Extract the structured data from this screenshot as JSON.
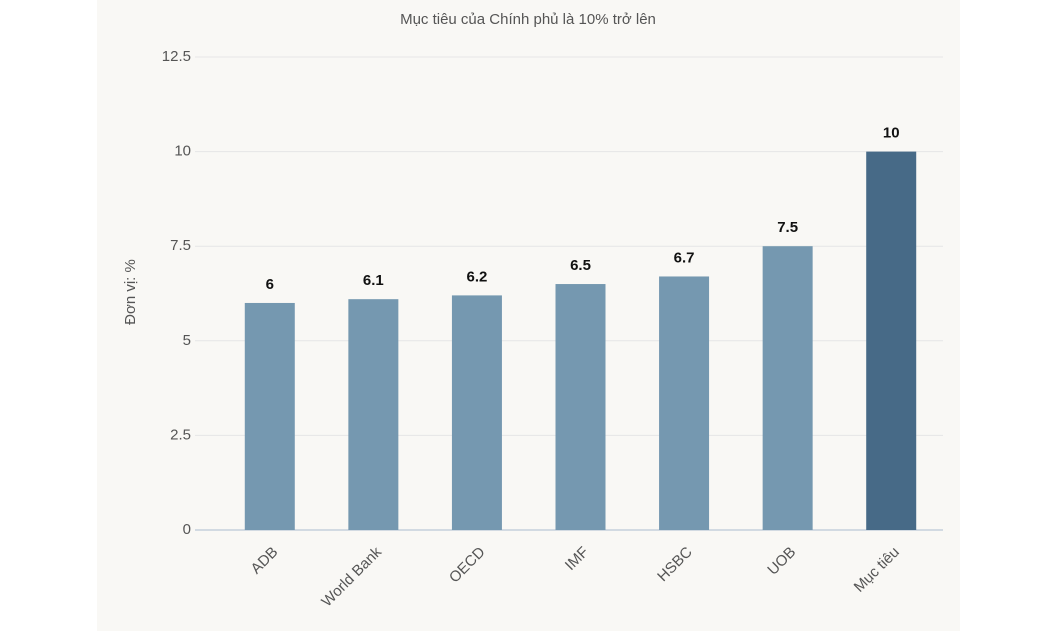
{
  "chart_data": {
    "type": "bar",
    "subtitle": "Mục tiêu của Chính phủ là 10% trở lên",
    "y_label": "Đơn vị: %",
    "categories": [
      "ADB",
      "World Bank",
      "OECD",
      "IMF",
      "HSBC",
      "UOB",
      "Mục tiêu"
    ],
    "values": [
      6,
      6.1,
      6.2,
      6.5,
      6.7,
      7.5,
      10
    ],
    "colors": [
      "#7598b0",
      "#7598b0",
      "#7598b0",
      "#7598b0",
      "#7598b0",
      "#7598b0",
      "#476a87"
    ],
    "ylim": [
      0,
      12.5
    ],
    "yticks": [
      0,
      2.5,
      5,
      7.5,
      10,
      12.5
    ],
    "grid": true
  }
}
